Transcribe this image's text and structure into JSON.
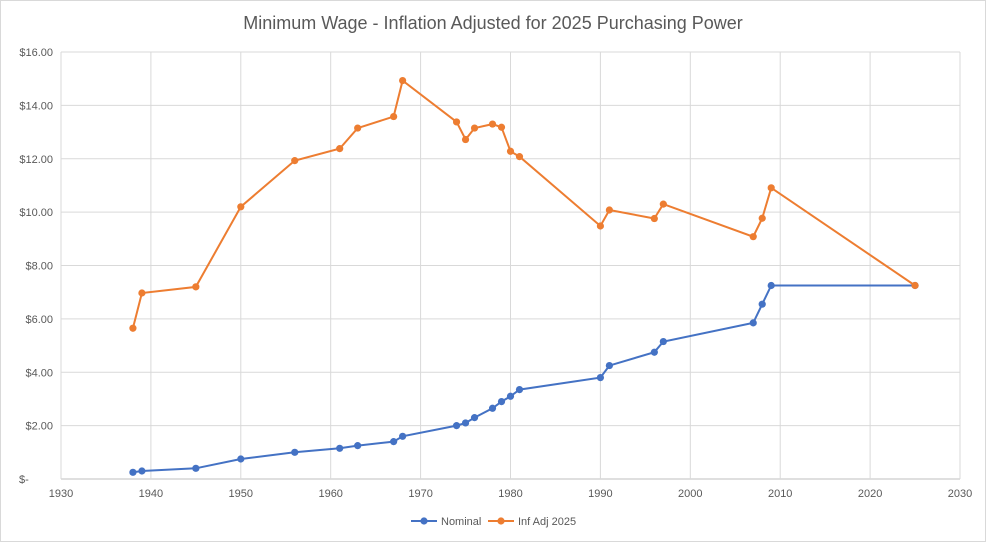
{
  "chart_data": {
    "type": "line",
    "title": "Minimum Wage - Inflation Adjusted for 2025 Purchasing Power",
    "xlabel": "",
    "ylabel": "",
    "xlim": [
      1930,
      2030
    ],
    "ylim": [
      0,
      16
    ],
    "x_ticks": [
      "1930",
      "1940",
      "1950",
      "1960",
      "1970",
      "1980",
      "1990",
      "2000",
      "2010",
      "2020",
      "2030"
    ],
    "y_ticks": [
      "$-",
      "$2.00",
      "$4.00",
      "$6.00",
      "$8.00",
      "$10.00",
      "$12.00",
      "$14.00",
      "$16.00"
    ],
    "grid": true,
    "legend_position": "bottom",
    "x": [
      1938,
      1939,
      1945,
      1950,
      1956,
      1961,
      1963,
      1967,
      1968,
      1974,
      1975,
      1976,
      1978,
      1979,
      1980,
      1981,
      1990,
      1991,
      1996,
      1997,
      2007,
      2008,
      2009,
      2025
    ],
    "series": [
      {
        "name": "Nominal",
        "color": "#4472C4",
        "values": [
          0.25,
          0.3,
          0.4,
          0.75,
          1.0,
          1.15,
          1.25,
          1.4,
          1.6,
          2.0,
          2.1,
          2.3,
          2.65,
          2.9,
          3.1,
          3.35,
          3.8,
          4.25,
          4.75,
          5.15,
          5.85,
          6.55,
          7.25,
          7.25
        ]
      },
      {
        "name": "Inf Adj 2025",
        "color": "#ED7D31",
        "values": [
          5.65,
          6.97,
          7.2,
          10.2,
          11.93,
          12.38,
          13.15,
          13.58,
          14.93,
          13.38,
          12.72,
          13.15,
          13.3,
          13.18,
          12.28,
          12.08,
          9.48,
          10.08,
          9.76,
          10.3,
          9.08,
          9.77,
          10.91,
          7.25
        ]
      }
    ]
  }
}
